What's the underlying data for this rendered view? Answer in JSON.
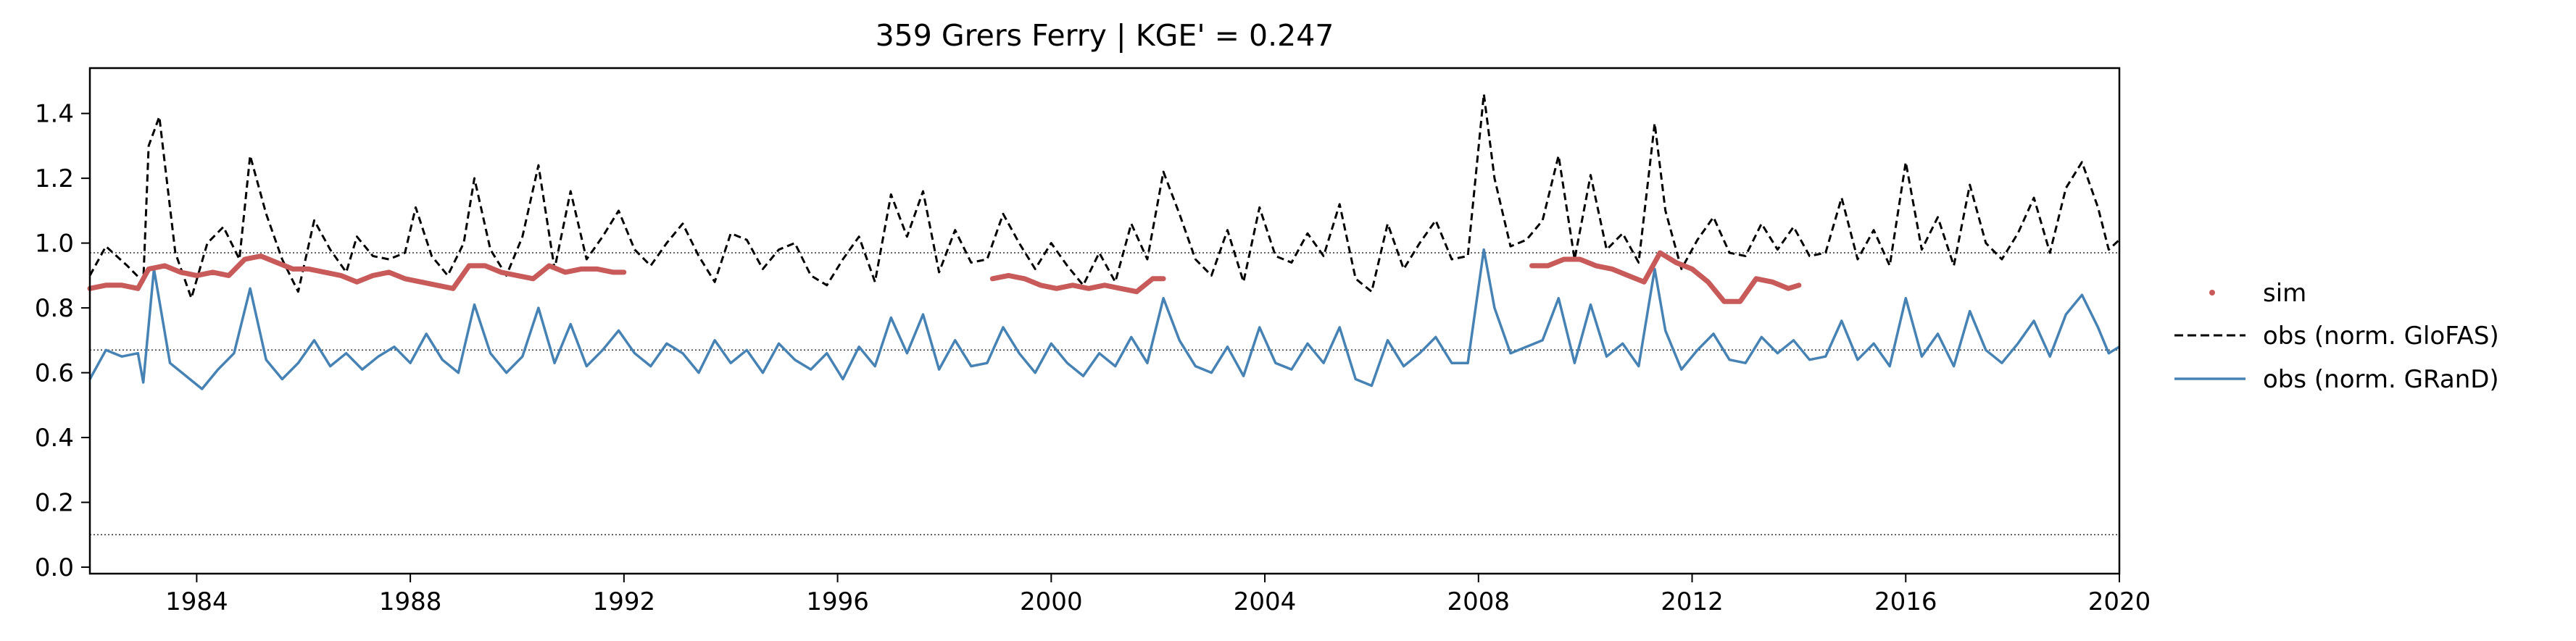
{
  "chart_data": {
    "type": "line",
    "title": "359  Grers Ferry | KGE' = 0.247",
    "xlabel": "",
    "ylabel": "",
    "xlim": [
      1982.0,
      2020.0
    ],
    "ylim": [
      -0.02,
      1.54
    ],
    "x_ticks": [
      1984,
      1988,
      1992,
      1996,
      2000,
      2004,
      2008,
      2012,
      2016,
      2020
    ],
    "y_ticks": [
      0.0,
      0.2,
      0.4,
      0.6,
      0.8,
      1.0,
      1.2,
      1.4
    ],
    "y_tick_labels": [
      "0.0",
      "0.2",
      "0.4",
      "0.6",
      "0.8",
      "1.0",
      "1.2",
      "1.4"
    ],
    "reference_lines": [
      0.97,
      0.67,
      0.1
    ],
    "grid": false,
    "legend_position": "outside-right",
    "series": [
      {
        "name": "sim",
        "style": "points",
        "color": "#c85a5a",
        "segments": [
          {
            "x": [
              1982.0,
              1982.3,
              1982.6,
              1982.9,
              1983.1,
              1983.4,
              1983.7,
              1984.0,
              1984.3,
              1984.6,
              1984.9,
              1985.2,
              1985.5,
              1985.8,
              1986.1,
              1986.4,
              1986.7,
              1987.0,
              1987.3,
              1987.6,
              1987.9,
              1988.2,
              1988.5,
              1988.8,
              1989.1,
              1989.4,
              1989.7,
              1990.0,
              1990.3,
              1990.6,
              1990.9,
              1991.2,
              1991.5,
              1991.8,
              1992.0
            ],
            "y": [
              0.86,
              0.87,
              0.87,
              0.86,
              0.92,
              0.93,
              0.91,
              0.9,
              0.91,
              0.9,
              0.95,
              0.96,
              0.94,
              0.92,
              0.92,
              0.91,
              0.9,
              0.88,
              0.9,
              0.91,
              0.89,
              0.88,
              0.87,
              0.86,
              0.93,
              0.93,
              0.91,
              0.9,
              0.89,
              0.93,
              0.91,
              0.92,
              0.92,
              0.91,
              0.91
            ]
          },
          {
            "x": [
              1998.9,
              1999.2,
              1999.5,
              1999.8,
              2000.1,
              2000.4,
              2000.7,
              2001.0,
              2001.3,
              2001.6,
              2001.9,
              2002.1
            ],
            "y": [
              0.89,
              0.9,
              0.89,
              0.87,
              0.86,
              0.87,
              0.86,
              0.87,
              0.86,
              0.85,
              0.89,
              0.89
            ]
          },
          {
            "x": [
              2009.0,
              2009.3,
              2009.6,
              2009.9,
              2010.2,
              2010.5,
              2010.8,
              2011.1,
              2011.4,
              2011.7,
              2012.0,
              2012.3,
              2012.6,
              2012.9,
              2013.2,
              2013.5,
              2013.8,
              2014.0
            ],
            "y": [
              0.93,
              0.93,
              0.95,
              0.95,
              0.93,
              0.92,
              0.9,
              0.88,
              0.97,
              0.94,
              0.92,
              0.88,
              0.82,
              0.82,
              0.89,
              0.88,
              0.86,
              0.87
            ]
          }
        ]
      },
      {
        "name": "obs (norm. GloFAS)",
        "style": "dashed",
        "color": "#000000",
        "x": [
          1982.0,
          1982.3,
          1982.7,
          1983.0,
          1983.1,
          1983.3,
          1983.6,
          1983.9,
          1984.2,
          1984.5,
          1984.8,
          1985.0,
          1985.3,
          1985.6,
          1985.9,
          1986.2,
          1986.5,
          1986.8,
          1987.0,
          1987.3,
          1987.6,
          1987.9,
          1988.1,
          1988.4,
          1988.7,
          1989.0,
          1989.2,
          1989.5,
          1989.8,
          1990.1,
          1990.4,
          1990.7,
          1991.0,
          1991.3,
          1991.6,
          1991.9,
          1992.2,
          1992.5,
          1992.8,
          1993.1,
          1993.4,
          1993.7,
          1994.0,
          1994.3,
          1994.6,
          1994.9,
          1995.2,
          1995.5,
          1995.8,
          1996.1,
          1996.4,
          1996.7,
          1997.0,
          1997.3,
          1997.6,
          1997.9,
          1998.2,
          1998.5,
          1998.8,
          1999.1,
          1999.4,
          1999.7,
          2000.0,
          2000.3,
          2000.6,
          2000.9,
          2001.2,
          2001.5,
          2001.8,
          2002.1,
          2002.4,
          2002.7,
          2003.0,
          2003.3,
          2003.6,
          2003.9,
          2004.2,
          2004.5,
          2004.8,
          2005.1,
          2005.4,
          2005.7,
          2006.0,
          2006.3,
          2006.6,
          2006.9,
          2007.2,
          2007.5,
          2007.8,
          2008.1,
          2008.3,
          2008.6,
          2008.9,
          2009.2,
          2009.5,
          2009.8,
          2010.1,
          2010.4,
          2010.7,
          2011.0,
          2011.3,
          2011.5,
          2011.8,
          2012.1,
          2012.4,
          2012.7,
          2013.0,
          2013.3,
          2013.6,
          2013.9,
          2014.2,
          2014.5,
          2014.8,
          2015.1,
          2015.4,
          2015.7,
          2016.0,
          2016.3,
          2016.6,
          2016.9,
          2017.2,
          2017.5,
          2017.8,
          2018.1,
          2018.4,
          2018.7,
          2019.0,
          2019.3,
          2019.6,
          2019.8,
          2020.0
        ],
        "y": [
          0.9,
          0.99,
          0.93,
          0.88,
          1.3,
          1.39,
          0.97,
          0.83,
          1.0,
          1.05,
          0.95,
          1.27,
          1.09,
          0.95,
          0.85,
          1.07,
          0.98,
          0.91,
          1.02,
          0.96,
          0.95,
          0.97,
          1.11,
          0.96,
          0.9,
          1.0,
          1.2,
          0.98,
          0.9,
          1.02,
          1.24,
          0.92,
          1.16,
          0.95,
          1.02,
          1.1,
          0.98,
          0.93,
          1.0,
          1.06,
          0.96,
          0.88,
          1.03,
          1.01,
          0.92,
          0.98,
          1.0,
          0.9,
          0.87,
          0.95,
          1.02,
          0.88,
          1.15,
          1.02,
          1.16,
          0.91,
          1.04,
          0.94,
          0.95,
          1.09,
          1.0,
          0.92,
          1.0,
          0.93,
          0.87,
          0.97,
          0.88,
          1.06,
          0.95,
          1.22,
          1.09,
          0.95,
          0.9,
          1.04,
          0.88,
          1.11,
          0.96,
          0.94,
          1.03,
          0.96,
          1.12,
          0.89,
          0.85,
          1.06,
          0.92,
          1.0,
          1.07,
          0.95,
          0.96,
          1.46,
          1.2,
          0.99,
          1.01,
          1.07,
          1.27,
          0.95,
          1.21,
          0.98,
          1.03,
          0.94,
          1.37,
          1.1,
          0.92,
          1.01,
          1.08,
          0.97,
          0.96,
          1.06,
          0.98,
          1.05,
          0.96,
          0.97,
          1.14,
          0.95,
          1.04,
          0.93,
          1.25,
          0.98,
          1.08,
          0.93,
          1.18,
          1.0,
          0.95,
          1.03,
          1.14,
          0.97,
          1.17,
          1.25,
          1.11,
          0.98,
          1.01
        ]
      },
      {
        "name": "obs (norm. GRanD)",
        "style": "solid",
        "color": "#4682b4",
        "x": [
          1982.0,
          1982.3,
          1982.6,
          1982.9,
          1983.0,
          1983.2,
          1983.5,
          1983.8,
          1984.1,
          1984.4,
          1984.7,
          1985.0,
          1985.3,
          1985.6,
          1985.9,
          1986.2,
          1986.5,
          1986.8,
          1987.1,
          1987.4,
          1987.7,
          1988.0,
          1988.3,
          1988.6,
          1988.9,
          1989.2,
          1989.5,
          1989.8,
          1990.1,
          1990.4,
          1990.7,
          1991.0,
          1991.3,
          1991.6,
          1991.9,
          1992.2,
          1992.5,
          1992.8,
          1993.1,
          1993.4,
          1993.7,
          1994.0,
          1994.3,
          1994.6,
          1994.9,
          1995.2,
          1995.5,
          1995.8,
          1996.1,
          1996.4,
          1996.7,
          1997.0,
          1997.3,
          1997.6,
          1997.9,
          1998.2,
          1998.5,
          1998.8,
          1999.1,
          1999.4,
          1999.7,
          2000.0,
          2000.3,
          2000.6,
          2000.9,
          2001.2,
          2001.5,
          2001.8,
          2002.1,
          2002.4,
          2002.7,
          2003.0,
          2003.3,
          2003.6,
          2003.9,
          2004.2,
          2004.5,
          2004.8,
          2005.1,
          2005.4,
          2005.7,
          2006.0,
          2006.3,
          2006.6,
          2006.9,
          2007.2,
          2007.5,
          2007.8,
          2008.1,
          2008.3,
          2008.6,
          2008.9,
          2009.2,
          2009.5,
          2009.8,
          2010.1,
          2010.4,
          2010.7,
          2011.0,
          2011.3,
          2011.5,
          2011.8,
          2012.1,
          2012.4,
          2012.7,
          2013.0,
          2013.3,
          2013.6,
          2013.9,
          2014.2,
          2014.5,
          2014.8,
          2015.1,
          2015.4,
          2015.7,
          2016.0,
          2016.3,
          2016.6,
          2016.9,
          2017.2,
          2017.5,
          2017.8,
          2018.1,
          2018.4,
          2018.7,
          2019.0,
          2019.3,
          2019.6,
          2019.8,
          2020.0
        ],
        "y": [
          0.58,
          0.67,
          0.65,
          0.66,
          0.57,
          0.92,
          0.63,
          0.59,
          0.55,
          0.61,
          0.66,
          0.86,
          0.64,
          0.58,
          0.63,
          0.7,
          0.62,
          0.66,
          0.61,
          0.65,
          0.68,
          0.63,
          0.72,
          0.64,
          0.6,
          0.81,
          0.66,
          0.6,
          0.65,
          0.8,
          0.63,
          0.75,
          0.62,
          0.67,
          0.73,
          0.66,
          0.62,
          0.69,
          0.66,
          0.6,
          0.7,
          0.63,
          0.67,
          0.6,
          0.69,
          0.64,
          0.61,
          0.66,
          0.58,
          0.68,
          0.62,
          0.77,
          0.66,
          0.78,
          0.61,
          0.7,
          0.62,
          0.63,
          0.74,
          0.66,
          0.6,
          0.69,
          0.63,
          0.59,
          0.66,
          0.62,
          0.71,
          0.63,
          0.83,
          0.7,
          0.62,
          0.6,
          0.68,
          0.59,
          0.74,
          0.63,
          0.61,
          0.69,
          0.63,
          0.74,
          0.58,
          0.56,
          0.7,
          0.62,
          0.66,
          0.71,
          0.63,
          0.63,
          0.98,
          0.8,
          0.66,
          0.68,
          0.7,
          0.83,
          0.63,
          0.81,
          0.65,
          0.69,
          0.62,
          0.92,
          0.73,
          0.61,
          0.67,
          0.72,
          0.64,
          0.63,
          0.71,
          0.66,
          0.7,
          0.64,
          0.65,
          0.76,
          0.64,
          0.69,
          0.62,
          0.83,
          0.65,
          0.72,
          0.62,
          0.79,
          0.67,
          0.63,
          0.69,
          0.76,
          0.65,
          0.78,
          0.84,
          0.74,
          0.66,
          0.68
        ]
      }
    ]
  }
}
